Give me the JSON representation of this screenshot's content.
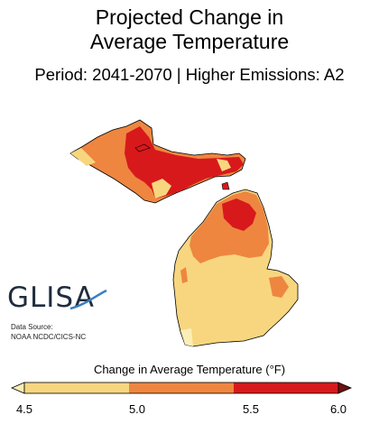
{
  "title_lines": [
    "Projected Change in",
    "Average Temperature"
  ],
  "subtitle": "Period: 2041-2070 | Higher Emissions: A2",
  "logo": "GLISA",
  "source_lines": [
    "Data Source:",
    "NOAA NCDC/CICS-NC"
  ],
  "legend": {
    "title": "Change in Average Temperature (°F)",
    "ticks": [
      "4.5",
      "5.0",
      "5.5",
      "6.0"
    ],
    "bins": [
      {
        "from": 4.5,
        "to": 5.0,
        "color": "#f7d67f"
      },
      {
        "from": 5.0,
        "to": 5.5,
        "color": "#ee8640"
      },
      {
        "from": 5.5,
        "to": 6.0,
        "color": "#d7191c"
      }
    ],
    "over_color": "#6b1111",
    "under_color": "#fbeeb6"
  },
  "colors": {
    "land_low": "#f7d67f",
    "land_mid": "#ee8640",
    "land_high": "#d7191c",
    "outline": "#000000"
  }
}
